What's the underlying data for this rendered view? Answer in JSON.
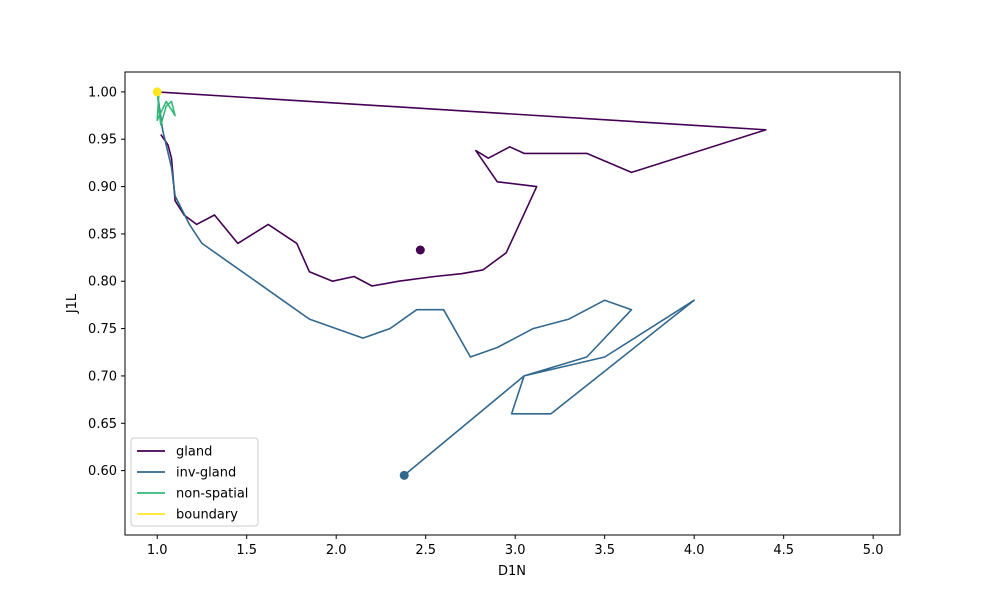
{
  "chart_data": {
    "type": "line",
    "title": "",
    "xlabel": "D1N",
    "ylabel": "J1L",
    "xlim": [
      0.82,
      5.15
    ],
    "ylim": [
      0.532,
      1.021
    ],
    "xticks": [
      1.0,
      1.5,
      2.0,
      2.5,
      3.0,
      3.5,
      4.0,
      4.5,
      5.0
    ],
    "xtick_labels": [
      "1.0",
      "1.5",
      "2.0",
      "2.5",
      "3.0",
      "3.5",
      "4.0",
      "4.5",
      "5.0"
    ],
    "yticks": [
      0.6,
      0.65,
      0.7,
      0.75,
      0.8,
      0.85,
      0.9,
      0.95,
      1.0
    ],
    "ytick_labels": [
      "0.60",
      "0.65",
      "0.70",
      "0.75",
      "0.80",
      "0.85",
      "0.90",
      "0.95",
      "1.00"
    ],
    "grid": false,
    "legend_position": "lower-left",
    "series": [
      {
        "name": "gland",
        "color": "#440154",
        "points": [
          [
            1.0,
            1.0
          ],
          [
            4.4,
            0.96
          ],
          [
            3.65,
            0.915
          ],
          [
            3.4,
            0.935
          ],
          [
            3.05,
            0.935
          ],
          [
            2.97,
            0.942
          ],
          [
            2.85,
            0.93
          ],
          [
            2.78,
            0.938
          ],
          [
            2.9,
            0.905
          ],
          [
            3.12,
            0.9
          ],
          [
            2.95,
            0.83
          ],
          [
            2.82,
            0.812
          ],
          [
            2.7,
            0.808
          ],
          [
            2.55,
            0.805
          ],
          [
            2.35,
            0.8
          ],
          [
            2.2,
            0.795
          ],
          [
            2.1,
            0.805
          ],
          [
            1.98,
            0.8
          ],
          [
            1.85,
            0.81
          ],
          [
            1.78,
            0.84
          ],
          [
            1.62,
            0.86
          ],
          [
            1.45,
            0.84
          ],
          [
            1.32,
            0.87
          ],
          [
            1.22,
            0.86
          ],
          [
            1.15,
            0.87
          ],
          [
            1.1,
            0.885
          ],
          [
            1.08,
            0.93
          ],
          [
            1.06,
            0.944
          ],
          [
            1.02,
            0.955
          ]
        ],
        "end_point": [
          2.47,
          0.833
        ]
      },
      {
        "name": "inv-gland",
        "color": "#31688e",
        "points": [
          [
            1.0,
            1.0
          ],
          [
            1.03,
            0.96
          ],
          [
            1.08,
            0.92
          ],
          [
            1.1,
            0.89
          ],
          [
            1.18,
            0.86
          ],
          [
            1.25,
            0.84
          ],
          [
            1.4,
            0.82
          ],
          [
            1.55,
            0.8
          ],
          [
            1.7,
            0.78
          ],
          [
            1.85,
            0.76
          ],
          [
            2.0,
            0.75
          ],
          [
            2.15,
            0.74
          ],
          [
            2.3,
            0.75
          ],
          [
            2.45,
            0.77
          ],
          [
            2.6,
            0.77
          ],
          [
            2.75,
            0.72
          ],
          [
            2.9,
            0.73
          ],
          [
            3.1,
            0.75
          ],
          [
            3.3,
            0.76
          ],
          [
            3.5,
            0.78
          ],
          [
            3.65,
            0.77
          ],
          [
            3.4,
            0.72
          ],
          [
            3.05,
            0.7
          ],
          [
            2.98,
            0.66
          ],
          [
            3.2,
            0.66
          ],
          [
            4.0,
            0.78
          ],
          [
            3.5,
            0.72
          ],
          [
            3.05,
            0.7
          ],
          [
            2.38,
            0.595
          ]
        ],
        "end_point": [
          2.38,
          0.595
        ]
      },
      {
        "name": "non-spatial",
        "color": "#35b779",
        "points": [
          [
            1.0,
            1.0
          ],
          [
            1.02,
            0.965
          ],
          [
            1.05,
            0.985
          ],
          [
            1.08,
            0.99
          ],
          [
            1.1,
            0.975
          ],
          [
            1.05,
            0.99
          ],
          [
            1.0,
            0.97
          ],
          [
            1.01,
            1.0
          ]
        ],
        "end_point": null
      },
      {
        "name": "boundary",
        "color": "#fde725",
        "points": [],
        "end_point": [
          1.0,
          1.0
        ]
      }
    ]
  }
}
